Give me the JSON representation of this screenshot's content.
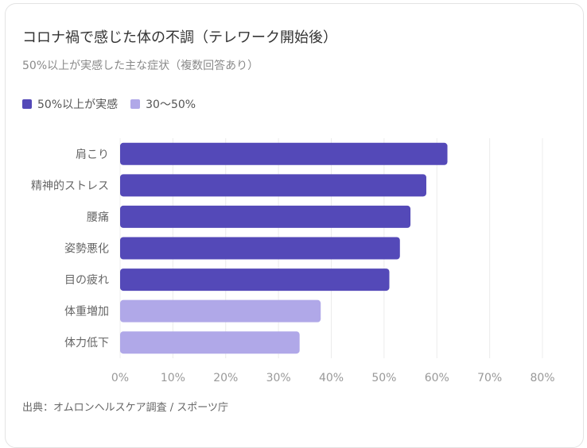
{
  "title": "コロナ禍で感じた体の不調（テレワーク開始後）",
  "subtitle": "50%以上が実感した主な症状（複数回答あり）",
  "legend": [
    {
      "label": "50%以上が実感",
      "color": "#5449b8"
    },
    {
      "label": "30〜50%",
      "color": "#b0a8e8"
    }
  ],
  "source": "出典：オムロンヘルスケア調査 / スポーツ庁",
  "colors": {
    "high": "#5449b8",
    "mid": "#b0a8e8",
    "grid": "#ececec"
  },
  "chart_data": {
    "type": "bar",
    "orientation": "horizontal",
    "categories": [
      "肩こり",
      "精神的ストレス",
      "腰痛",
      "姿勢悪化",
      "目の疲れ",
      "体重増加",
      "体力低下"
    ],
    "values": [
      62,
      58,
      55,
      53,
      51,
      38,
      34
    ],
    "groups": [
      "50%以上が実感",
      "50%以上が実感",
      "50%以上が実感",
      "50%以上が実感",
      "50%以上が実感",
      "30〜50%",
      "30〜50%"
    ],
    "xlim": [
      0,
      80
    ],
    "xticks": [
      0,
      10,
      20,
      30,
      40,
      50,
      60,
      70,
      80
    ],
    "xtick_labels": [
      "0%",
      "10%",
      "20%",
      "30%",
      "40%",
      "50%",
      "60%",
      "70%",
      "80%"
    ],
    "grid": true,
    "legend_position": "top-left"
  }
}
